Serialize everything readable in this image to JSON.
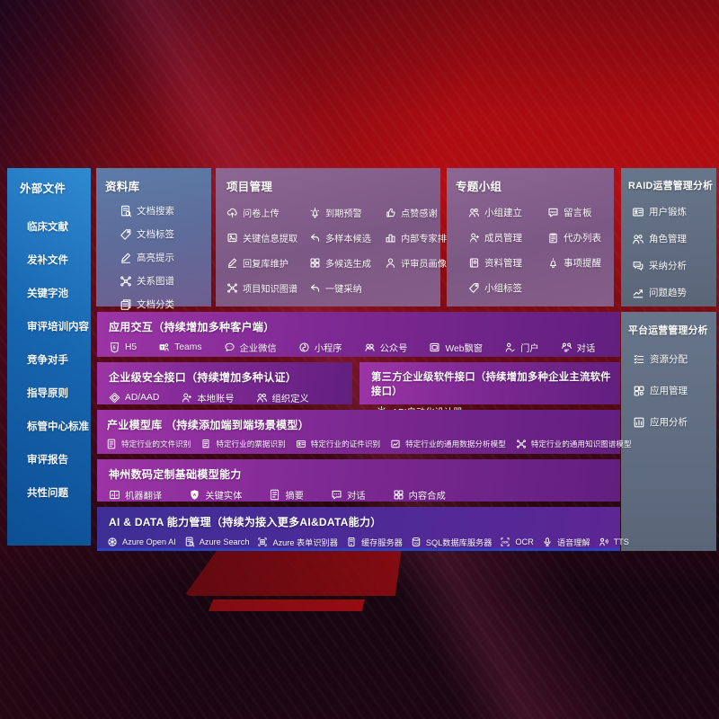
{
  "colors": {
    "bg_red": "#b00d12",
    "panel_blue": "#1766b0",
    "panel_steel_blue": "#5e6c9a",
    "panel_mauve": "#7c5884",
    "panel_slate": "#5f6c80",
    "row_purple": "#802a95",
    "row_indigo": "#4b2b97",
    "accent_blue_line": "#2843c6",
    "text": "#ffffff"
  },
  "external": {
    "title": "外部文件",
    "items": [
      "临床文献",
      "发补文件",
      "关键字池",
      "审评培训内容",
      "竞争对手",
      "指导原则",
      "标管中心标准",
      "审评报告",
      "共性问题"
    ]
  },
  "repository": {
    "title": "资料库",
    "items": [
      {
        "icon": "doc-search-icon",
        "label": "文档搜索"
      },
      {
        "icon": "tag-icon",
        "label": "文档标签"
      },
      {
        "icon": "highlight-pen-icon",
        "label": "高亮提示"
      },
      {
        "icon": "relation-graph-icon",
        "label": "关系图谱"
      },
      {
        "icon": "doc-category-icon",
        "label": "文档分类"
      }
    ]
  },
  "project": {
    "title": "项目管理",
    "items": [
      {
        "icon": "cloud-upload-icon",
        "label": "问卷上传"
      },
      {
        "icon": "alarm-icon",
        "label": "到期预警"
      },
      {
        "icon": "thumbs-up-icon",
        "label": "点赞感谢"
      },
      {
        "icon": "extract-info-icon",
        "label": "关键信息提取"
      },
      {
        "icon": "reply-arrow-icon",
        "label": "多样本候选"
      },
      {
        "icon": "ranking-icon",
        "label": "内部专家排名"
      },
      {
        "icon": "edit-pen-icon",
        "label": "回复库维护"
      },
      {
        "icon": "multi-generate-icon",
        "label": "多候选生成"
      },
      {
        "icon": "person-icon",
        "label": "评审员画像"
      },
      {
        "icon": "knowledge-graph-icon",
        "label": "项目知识图谱"
      },
      {
        "icon": "adopt-arrow-icon",
        "label": "一键采纳"
      }
    ]
  },
  "group": {
    "title": "专题小组",
    "items": [
      {
        "icon": "people-icon",
        "label": "小组建立"
      },
      {
        "icon": "bbs-icon",
        "label": "留言板"
      },
      {
        "icon": "member-icon",
        "label": "成员管理"
      },
      {
        "icon": "todo-list-icon",
        "label": "代办列表"
      },
      {
        "icon": "album-icon",
        "label": "资料管理"
      },
      {
        "icon": "bell-icon",
        "label": "事项提醒"
      },
      {
        "icon": "tag-icon",
        "label": "小组标签"
      }
    ]
  },
  "raid": {
    "title": "RAID运营管理分析",
    "items": [
      {
        "icon": "id-card-icon",
        "label": "用户锻炼"
      },
      {
        "icon": "people-icon",
        "label": "角色管理"
      },
      {
        "icon": "chat-analysis-icon",
        "label": "采纳分析"
      },
      {
        "icon": "trend-chart-icon",
        "label": "问题趋势"
      }
    ]
  },
  "platform": {
    "title": "平台运营管理分析",
    "items": [
      {
        "icon": "resource-list-icon",
        "label": "资源分配"
      },
      {
        "icon": "app-grid-icon",
        "label": "应用管理"
      },
      {
        "icon": "app-chart-icon",
        "label": "应用分析"
      }
    ]
  },
  "interaction": {
    "title": "应用交互（持续增加多种客户端）",
    "items": [
      {
        "icon": "html5-icon",
        "label": "H5"
      },
      {
        "icon": "teams-icon",
        "label": "Teams"
      },
      {
        "icon": "wecom-icon",
        "label": "企业微信"
      },
      {
        "icon": "miniprogram-icon",
        "label": "小程序"
      },
      {
        "icon": "official-account-icon",
        "label": "公众号"
      },
      {
        "icon": "web-window-icon",
        "label": "Web飘窗"
      },
      {
        "icon": "portal-icon",
        "label": "门户"
      },
      {
        "icon": "dialog-icon",
        "label": "对话"
      }
    ]
  },
  "security": {
    "title": "企业级安全接口（持续增加多种认证）",
    "items": [
      {
        "icon": "ad-icon",
        "label": "AD/AAD"
      },
      {
        "icon": "local-account-icon",
        "label": "本地账号"
      },
      {
        "icon": "org-icon",
        "label": "组织定义"
      }
    ]
  },
  "thirdparty": {
    "title": "第三方企业级软件接口（持续增加多种企业主流软件接口）",
    "items": [
      {
        "icon": "api-gear-icon",
        "label": "API自动化设计器"
      }
    ]
  },
  "industry": {
    "title": "产业模型库 （持续添加端到端场景模型）",
    "items": [
      {
        "icon": "doc-recognize-icon",
        "label": "特定行业的文件识别"
      },
      {
        "icon": "receipt-icon",
        "label": "特定行业的票据识别"
      },
      {
        "icon": "id-card-icon",
        "label": "特定行业的证件识别"
      },
      {
        "icon": "data-model-icon",
        "label": "特定行业的通用数据分析模型"
      },
      {
        "icon": "knowledge-graph-icon",
        "label": "特定行业的通用知识图谱模型"
      }
    ]
  },
  "digital": {
    "title": "神州数码定制基础模型能力",
    "items": [
      {
        "icon": "translate-icon",
        "label": "机器翻译"
      },
      {
        "icon": "entity-icon",
        "label": "关键实体"
      },
      {
        "icon": "summary-icon",
        "label": "摘要"
      },
      {
        "icon": "chat-icon",
        "label": "对话"
      },
      {
        "icon": "compose-icon",
        "label": "内容合成"
      }
    ]
  },
  "aidata": {
    "title": "AI & DATA 能力管理（持续为接入更多AI&DATA能力）",
    "items": [
      {
        "icon": "openai-icon",
        "label": "Azure Open AI"
      },
      {
        "icon": "azure-search-icon",
        "label": "Azure Search"
      },
      {
        "icon": "form-recognizer-icon",
        "label": "Azure 表单识别器"
      },
      {
        "icon": "cache-server-icon",
        "label": "缓存服务器"
      },
      {
        "icon": "sql-db-icon",
        "label": "SQL数据库服务器"
      },
      {
        "icon": "ocr-icon",
        "label": "OCR"
      },
      {
        "icon": "speech-icon",
        "label": "语音理解"
      },
      {
        "icon": "tts-icon",
        "label": "TTS"
      }
    ]
  }
}
